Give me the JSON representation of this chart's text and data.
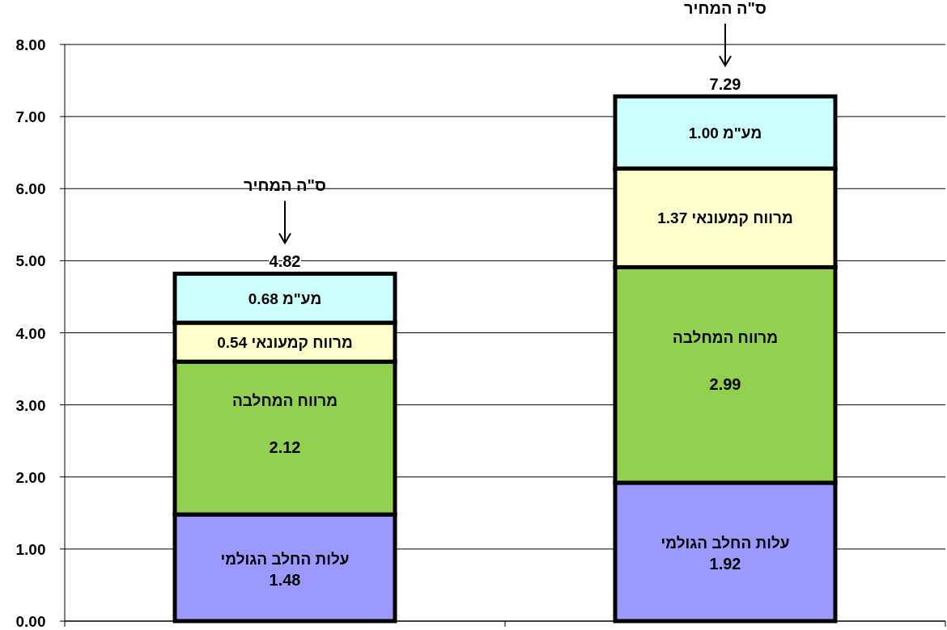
{
  "chart_data": {
    "type": "bar",
    "stacked": true,
    "categories": [
      null,
      null
    ],
    "series": [
      {
        "name": "עלות החלב הגולמי",
        "color": "#9999ff",
        "values": [
          1.48,
          1.92
        ],
        "value_labels": [
          "1.48",
          "1.92"
        ]
      },
      {
        "name": "מרווח המחלבה",
        "color": "#92d050",
        "values": [
          2.12,
          2.99
        ],
        "value_labels": [
          "2.12",
          "2.99"
        ]
      },
      {
        "name": "מרווח  קמעונאי",
        "color": "#ffffcc",
        "values": [
          0.54,
          1.37
        ],
        "value_labels": [
          "0.54",
          "1.37"
        ]
      },
      {
        "name": "מע\"מ",
        "color": "#ccffff",
        "values": [
          0.68,
          1.0
        ],
        "value_labels": [
          "0.68",
          "1.00"
        ]
      }
    ],
    "totals": [
      "4.82",
      "7.29"
    ],
    "annotations": [
      "ס\"ה המחיר",
      "ס\"ה המחיר"
    ],
    "ylim": [
      0,
      8
    ],
    "yticks": [
      {
        "value": 0,
        "label": "0.00"
      },
      {
        "value": 1,
        "label": "1.00"
      },
      {
        "value": 2,
        "label": "2.00"
      },
      {
        "value": 3,
        "label": "3.00"
      },
      {
        "value": 4,
        "label": "4.00"
      },
      {
        "value": 5,
        "label": "5.00"
      },
      {
        "value": 6,
        "label": "6.00"
      },
      {
        "value": 7,
        "label": "7.00"
      },
      {
        "value": 8,
        "label": "8.00"
      }
    ],
    "grid": "y"
  }
}
